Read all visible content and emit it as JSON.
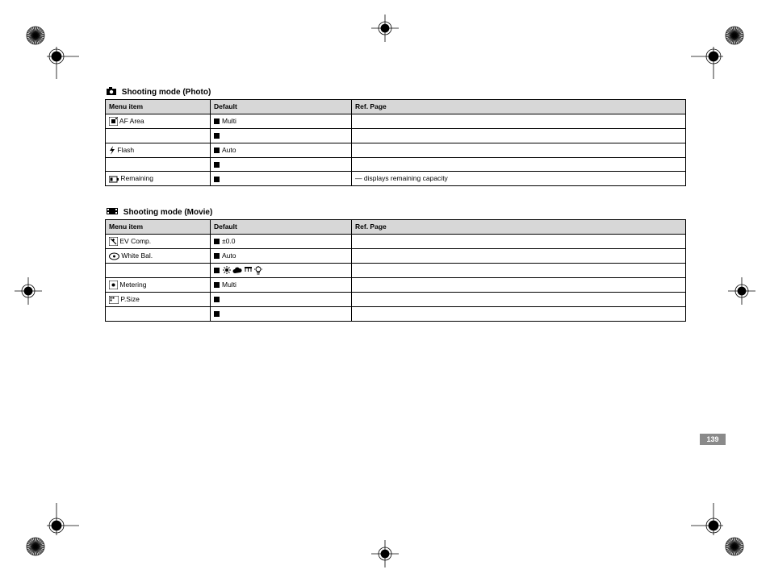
{
  "page_number": "139",
  "footer_text": "",
  "table1": {
    "title": "Shooting mode (Photo)",
    "title_icon": "camera",
    "headers": [
      "Menu item",
      "Default",
      "Ref. Page"
    ],
    "rows": [
      {
        "icon": "af-area",
        "item": "AF Area",
        "def_marker": true,
        "default": "Multi",
        "ref": ""
      },
      {
        "icon": "",
        "item": "",
        "def_marker": true,
        "default": "",
        "ref": ""
      },
      {
        "icon": "flash",
        "item": "Flash",
        "def_marker": true,
        "default": "Auto",
        "ref": ""
      },
      {
        "icon": "",
        "item": "",
        "def_marker": true,
        "default": "",
        "ref": ""
      },
      {
        "icon": "battery",
        "item": "Remaining",
        "def_marker": true,
        "default": "",
        "ref": "— displays remaining capacity"
      }
    ]
  },
  "table2": {
    "title": "Shooting mode (Movie)",
    "title_icon": "film",
    "headers": [
      "Menu item",
      "Default",
      "Ref. Page"
    ],
    "rows": [
      {
        "icon": "ev",
        "item": "EV Comp.",
        "def_marker": true,
        "default": "±0.0",
        "ref": ""
      },
      {
        "icon": "wb",
        "item": "White Bal.",
        "def_marker": true,
        "default": "Auto",
        "ref": ""
      },
      {
        "icon": "wb-ext",
        "item": "",
        "def_marker": true,
        "default": "",
        "ref": "",
        "extra_icons": [
          "sun",
          "cloud",
          "fluor",
          "tungsten"
        ]
      },
      {
        "icon": "metering",
        "item": "Metering",
        "def_marker": true,
        "default": "Multi",
        "ref": ""
      },
      {
        "icon": "size",
        "item": "P.Size",
        "def_marker": true,
        "default": "",
        "ref": ""
      },
      {
        "icon": "",
        "item": "",
        "def_marker": true,
        "default": "",
        "ref": ""
      }
    ]
  },
  "colors": {
    "header_bg": "#d7d7d7",
    "border": "#000000",
    "pgnum_bg": "#8a8a8a"
  }
}
